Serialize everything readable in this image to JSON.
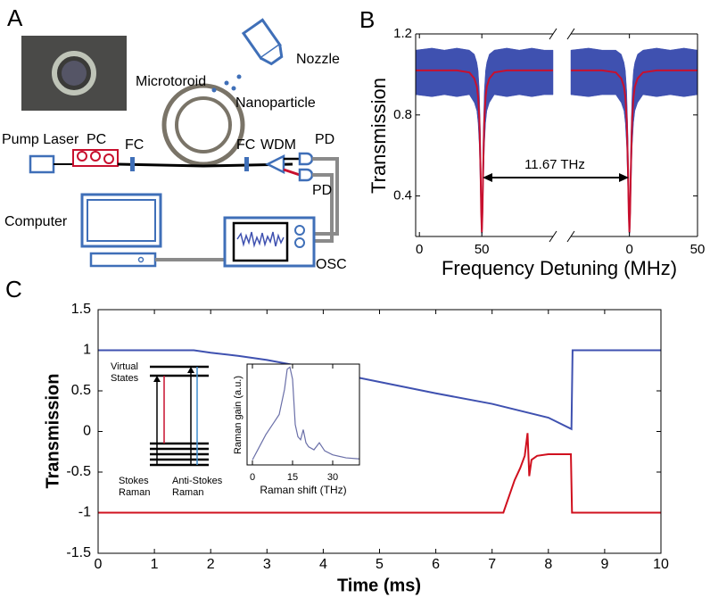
{
  "panel_a": {
    "label": "A",
    "nozzle": "Nozzle",
    "microtoroid": "Microtoroid",
    "nanoparticle": "Nanoparticle",
    "pump_laser": "Pump Laser",
    "pc": "PC",
    "fc_left": "FC",
    "fc_right": "FC",
    "wdm": "WDM",
    "pd_top": "PD",
    "pd_bottom": "PD",
    "computer": "Computer",
    "osc": "OSC"
  },
  "energy_diagram": {
    "virtual_states": [
      "Virtual",
      "States"
    ],
    "stokes": [
      "Stokes",
      "Raman"
    ],
    "anti_stokes": [
      "Anti-Stokes",
      "Raman"
    ]
  },
  "chart_data": [
    {
      "type": "broken-line",
      "panel_label": "B",
      "xlabel": "Frequency Detuning (MHz)",
      "ylabel": "Transmission",
      "annotation": "11.67 THz",
      "ylim": [
        0.2,
        1.2
      ],
      "yticks": [
        0.4,
        0.8,
        1.2
      ],
      "segments": [
        {
          "xlim": [
            -3,
            107
          ],
          "xticks": [
            0,
            50
          ],
          "x": [
            -3,
            10,
            20,
            30,
            40,
            44,
            46,
            47,
            48,
            49,
            49.5,
            50,
            50.5,
            51,
            52,
            53,
            54,
            56,
            60,
            70,
            80,
            90,
            100,
            107
          ],
          "band": {
            "color": "#3f51b0",
            "lower": [
              0.9,
              0.89,
              0.9,
              0.89,
              0.9,
              0.86,
              0.82,
              0.76,
              0.64,
              0.38,
              0.24,
              0.2,
              0.24,
              0.38,
              0.64,
              0.76,
              0.82,
              0.86,
              0.9,
              0.89,
              0.9,
              0.89,
              0.9,
              0.9
            ],
            "upper": [
              1.12,
              1.13,
              1.12,
              1.13,
              1.12,
              1.1,
              1.06,
              1.02,
              0.92,
              0.68,
              0.45,
              0.32,
              0.45,
              0.68,
              0.92,
              1.02,
              1.06,
              1.1,
              1.12,
              1.13,
              1.12,
              1.13,
              1.12,
              1.12
            ]
          },
          "fit": {
            "color": "#c8102e",
            "values": [
              1.02,
              1.02,
              1.02,
              1.02,
              1.01,
              0.98,
              0.94,
              0.89,
              0.78,
              0.52,
              0.32,
              0.22,
              0.32,
              0.52,
              0.78,
              0.89,
              0.94,
              0.98,
              1.01,
              1.02,
              1.02,
              1.02,
              1.02,
              1.02
            ]
          }
        },
        {
          "xlim": [
            -43,
            50
          ],
          "xticks": [
            0,
            50
          ],
          "x": [
            -43,
            -30,
            -20,
            -10,
            -6,
            -4,
            -3,
            -2,
            -1,
            -0.5,
            0,
            0.5,
            1,
            2,
            3,
            4,
            6,
            10,
            20,
            30,
            40,
            50
          ],
          "band": {
            "color": "#3f51b0",
            "lower": [
              0.9,
              0.89,
              0.9,
              0.9,
              0.86,
              0.82,
              0.76,
              0.64,
              0.38,
              0.24,
              0.2,
              0.24,
              0.38,
              0.64,
              0.76,
              0.82,
              0.86,
              0.9,
              0.89,
              0.9,
              0.89,
              0.9
            ],
            "upper": [
              1.12,
              1.13,
              1.12,
              1.12,
              1.1,
              1.06,
              1.02,
              0.92,
              0.68,
              0.45,
              0.32,
              0.45,
              0.68,
              0.92,
              1.02,
              1.06,
              1.1,
              1.12,
              1.13,
              1.12,
              1.13,
              1.12
            ]
          },
          "fit": {
            "color": "#c8102e",
            "values": [
              1.02,
              1.02,
              1.02,
              1.01,
              0.98,
              0.94,
              0.89,
              0.78,
              0.52,
              0.32,
              0.22,
              0.32,
              0.52,
              0.78,
              0.89,
              0.94,
              0.98,
              1.01,
              1.02,
              1.02,
              1.02,
              1.02
            ]
          }
        }
      ]
    },
    {
      "type": "line",
      "panel_label": "C",
      "xlabel": "Time (ms)",
      "ylabel": "Transmission",
      "xlim": [
        0,
        10
      ],
      "xticks": [
        0,
        1,
        2,
        3,
        4,
        5,
        6,
        7,
        8,
        9,
        10
      ],
      "ylim": [
        -1.5,
        1.5
      ],
      "yticks": [
        -1.5,
        -1,
        -0.5,
        0,
        0.5,
        1,
        1.5
      ],
      "series": [
        {
          "color": "#3f51b0",
          "x": [
            0,
            1.7,
            2,
            2.5,
            3,
            4,
            5,
            6,
            7,
            8,
            8.41,
            8.43,
            9,
            10
          ],
          "values": [
            1,
            1,
            0.97,
            0.93,
            0.88,
            0.75,
            0.61,
            0.47,
            0.34,
            0.17,
            0.03,
            1,
            1,
            1
          ]
        },
        {
          "color": "#d0101e",
          "x": [
            0,
            7.2,
            7.3,
            7.4,
            7.5,
            7.58,
            7.63,
            7.66,
            7.7,
            7.8,
            8.0,
            8.4,
            8.42,
            9,
            10
          ],
          "values": [
            -1,
            -1,
            -0.8,
            -0.6,
            -0.45,
            -0.3,
            -0.02,
            -0.55,
            -0.35,
            -0.3,
            -0.28,
            -0.28,
            -1,
            -1,
            -1
          ]
        }
      ]
    },
    {
      "type": "line",
      "xlabel": "Raman shift (THz)",
      "ylabel": "Raman gain (a.u.)",
      "xlim": [
        -2,
        40
      ],
      "xticks": [
        0,
        15,
        30
      ],
      "ylim": [
        0,
        1
      ],
      "series": [
        {
          "color": "#6a6fa8",
          "x": [
            0,
            2,
            5,
            8,
            10,
            12,
            13,
            14,
            15,
            16,
            17,
            18,
            19,
            20,
            21,
            23,
            25,
            27,
            30,
            35,
            40
          ],
          "values": [
            0.05,
            0.15,
            0.3,
            0.42,
            0.5,
            0.75,
            0.95,
            0.97,
            0.85,
            0.4,
            0.28,
            0.25,
            0.35,
            0.22,
            0.18,
            0.15,
            0.22,
            0.14,
            0.1,
            0.07,
            0.06
          ]
        }
      ]
    }
  ]
}
